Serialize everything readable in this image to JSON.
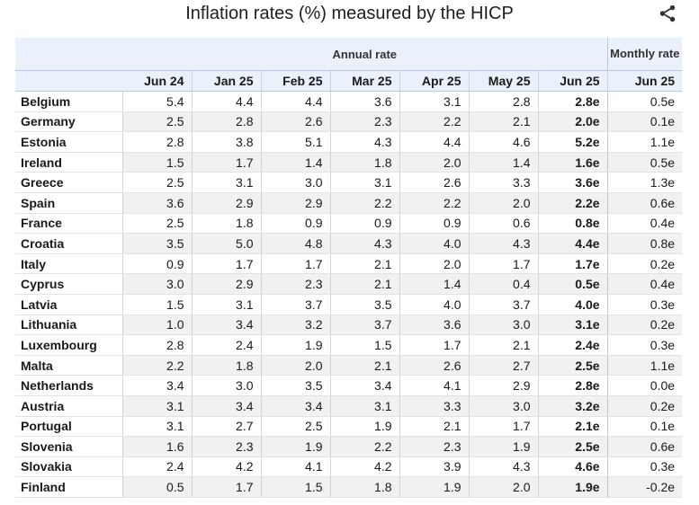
{
  "page": {
    "title": "Inflation rates (%) measured by the HICP"
  },
  "icons": {
    "share": "share-icon"
  },
  "chart_data": {
    "type": "table",
    "title": "Inflation rates (%) measured by the HICP",
    "group_headers": {
      "annual": "Annual rate",
      "monthly": "Monthly rate"
    },
    "columns": [
      "Jun 24",
      "Jan 25",
      "Feb 25",
      "Mar 25",
      "Apr 25",
      "May 25",
      "Jun 25",
      "Jun 25"
    ],
    "rows": [
      {
        "country": "Belgium",
        "values": [
          "5.4",
          "4.4",
          "4.4",
          "3.6",
          "3.1",
          "2.8",
          "2.8e",
          "0.5e"
        ]
      },
      {
        "country": "Germany",
        "values": [
          "2.5",
          "2.8",
          "2.6",
          "2.3",
          "2.2",
          "2.1",
          "2.0e",
          "0.1e"
        ]
      },
      {
        "country": "Estonia",
        "values": [
          "2.8",
          "3.8",
          "5.1",
          "4.3",
          "4.4",
          "4.6",
          "5.2e",
          "1.1e"
        ]
      },
      {
        "country": "Ireland",
        "values": [
          "1.5",
          "1.7",
          "1.4",
          "1.8",
          "2.0",
          "1.4",
          "1.6e",
          "0.5e"
        ]
      },
      {
        "country": "Greece",
        "values": [
          "2.5",
          "3.1",
          "3.0",
          "3.1",
          "2.6",
          "3.3",
          "3.6e",
          "1.3e"
        ]
      },
      {
        "country": "Spain",
        "values": [
          "3.6",
          "2.9",
          "2.9",
          "2.2",
          "2.2",
          "2.0",
          "2.2e",
          "0.6e"
        ]
      },
      {
        "country": "France",
        "values": [
          "2.5",
          "1.8",
          "0.9",
          "0.9",
          "0.9",
          "0.6",
          "0.8e",
          "0.4e"
        ]
      },
      {
        "country": "Croatia",
        "values": [
          "3.5",
          "5.0",
          "4.8",
          "4.3",
          "4.0",
          "4.3",
          "4.4e",
          "0.8e"
        ]
      },
      {
        "country": "Italy",
        "values": [
          "0.9",
          "1.7",
          "1.7",
          "2.1",
          "2.0",
          "1.7",
          "1.7e",
          "0.2e"
        ]
      },
      {
        "country": "Cyprus",
        "values": [
          "3.0",
          "2.9",
          "2.3",
          "2.1",
          "1.4",
          "0.4",
          "0.5e",
          "0.4e"
        ]
      },
      {
        "country": "Latvia",
        "values": [
          "1.5",
          "3.1",
          "3.7",
          "3.5",
          "4.0",
          "3.7",
          "4.0e",
          "0.3e"
        ]
      },
      {
        "country": "Lithuania",
        "values": [
          "1.0",
          "3.4",
          "3.2",
          "3.7",
          "3.6",
          "3.0",
          "3.1e",
          "0.2e"
        ]
      },
      {
        "country": "Luxembourg",
        "values": [
          "2.8",
          "2.4",
          "1.9",
          "1.5",
          "1.7",
          "2.1",
          "2.4e",
          "0.3e"
        ]
      },
      {
        "country": "Malta",
        "values": [
          "2.2",
          "1.8",
          "2.0",
          "2.1",
          "2.6",
          "2.7",
          "2.5e",
          "1.1e"
        ]
      },
      {
        "country": "Netherlands",
        "values": [
          "3.4",
          "3.0",
          "3.5",
          "3.4",
          "4.1",
          "2.9",
          "2.8e",
          "0.0e"
        ]
      },
      {
        "country": "Austria",
        "values": [
          "3.1",
          "3.4",
          "3.4",
          "3.1",
          "3.3",
          "3.0",
          "3.2e",
          "0.2e"
        ]
      },
      {
        "country": "Portugal",
        "values": [
          "3.1",
          "2.7",
          "2.5",
          "1.9",
          "2.1",
          "1.7",
          "2.1e",
          "0.1e"
        ]
      },
      {
        "country": "Slovenia",
        "values": [
          "1.6",
          "2.3",
          "1.9",
          "2.2",
          "2.3",
          "1.9",
          "2.5e",
          "0.6e"
        ]
      },
      {
        "country": "Slovakia",
        "values": [
          "2.4",
          "4.2",
          "4.1",
          "4.2",
          "3.9",
          "4.3",
          "4.6e",
          "0.3e"
        ]
      },
      {
        "country": "Finland",
        "values": [
          "0.5",
          "1.7",
          "1.5",
          "1.8",
          "1.9",
          "2.0",
          "1.9e",
          "-0.2e"
        ]
      }
    ]
  }
}
